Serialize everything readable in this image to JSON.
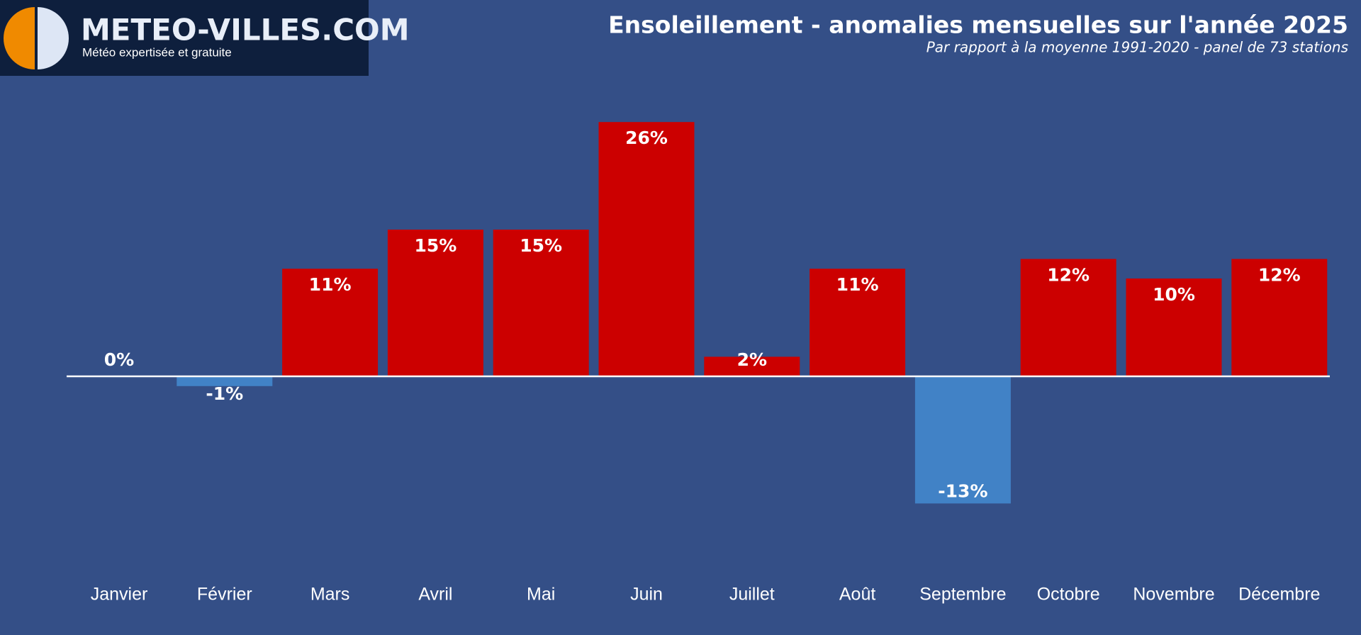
{
  "logo": {
    "name": "METEO-VILLES.COM",
    "tagline": "Météo expertisée et gratuite"
  },
  "chart_data": {
    "type": "bar",
    "title": "Ensoleillement - anomalies mensuelles sur l'année 2025",
    "subtitle": "Par rapport à la moyenne 1991-2020 - panel de 73 stations",
    "categories": [
      "Janvier",
      "Février",
      "Mars",
      "Avril",
      "Mai",
      "Juin",
      "Juillet",
      "Août",
      "Septembre",
      "Octobre",
      "Novembre",
      "Décembre"
    ],
    "values": [
      0,
      -1,
      11,
      15,
      15,
      26,
      2,
      11,
      -13,
      12,
      10,
      12
    ],
    "value_labels": [
      "0%",
      "-1%",
      "11%",
      "15%",
      "15%",
      "26%",
      "2%",
      "11%",
      "-13%",
      "12%",
      "10%",
      "12%"
    ],
    "colors": [
      "#cc0000",
      "#4182c6",
      "#cc0000",
      "#cc0000",
      "#cc0000",
      "#cc0000",
      "#cc0000",
      "#cc0000",
      "#4182c6",
      "#cc0000",
      "#cc0000",
      "#cc0000"
    ]
  }
}
